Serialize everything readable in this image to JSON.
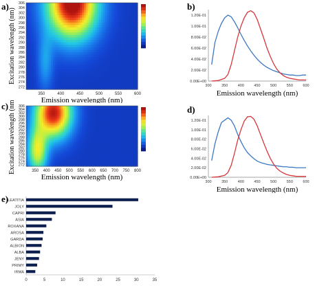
{
  "panel_labels": {
    "a": "a)",
    "b": "b)",
    "c": "c)",
    "d": "d)",
    "e": "e)"
  },
  "colors": {
    "blue_series": "#3b78c0",
    "red_series": "#d9363b",
    "bar": "#0d1f4e",
    "axis": "#888888"
  },
  "chart_data": [
    {
      "panel": "a",
      "type": "heatmap",
      "xlabel": "Emission wavelength (nm)",
      "ylabel": "Excitation wavelength (nm)",
      "x_ticks": [
        "350",
        "400",
        "450",
        "500",
        "550",
        "600"
      ],
      "y_ticks": [
        "272",
        "274",
        "276",
        "278",
        "280",
        "282",
        "284",
        "286",
        "288",
        "290",
        "292",
        "294",
        "296",
        "298",
        "300",
        "302",
        "304",
        "306"
      ],
      "xlim": [
        310,
        600
      ],
      "ylim": [
        271,
        306
      ],
      "colormap": [
        "#0a1f8a",
        "#1446d6",
        "#1b86ef",
        "#22c7e6",
        "#4ee39c",
        "#aef04a",
        "#f4ee2a",
        "#f9a820",
        "#ef3b1a",
        "#b0140f"
      ],
      "legend": "color scale, top-right",
      "peaks": [
        {
          "x": 430,
          "y": 306,
          "level": 1.0,
          "sx": 45,
          "sy": 10
        },
        {
          "x": 360,
          "y": 282,
          "level": 0.18,
          "sx": 14,
          "sy": 8
        }
      ]
    },
    {
      "panel": "b",
      "type": "line",
      "xlabel": "Emission wavelength (nm)",
      "ylabel": "",
      "x_ticks": [
        "300",
        "350",
        "400",
        "450",
        "500",
        "550",
        "600"
      ],
      "y_ticks": [
        "0.00E+00",
        "2.00E-02",
        "4.00E-02",
        "6.00E-02",
        "8.00E-02",
        "1.00E-01",
        "1.20E-01"
      ],
      "xlim": [
        300,
        600
      ],
      "ylim": [
        0,
        0.13
      ],
      "series": [
        {
          "x": [
            310,
            320,
            330,
            340,
            350,
            360,
            370,
            380,
            390,
            400,
            410,
            420,
            430,
            440,
            450,
            460,
            470,
            480,
            490,
            500,
            510,
            520,
            530,
            540,
            550,
            560,
            570,
            580,
            590,
            600
          ],
          "y": [
            0.03,
            0.07,
            0.09,
            0.105,
            0.115,
            0.12,
            0.117,
            0.108,
            0.097,
            0.085,
            0.074,
            0.064,
            0.055,
            0.047,
            0.04,
            0.034,
            0.029,
            0.025,
            0.022,
            0.019,
            0.017,
            0.015,
            0.013,
            0.012,
            0.011,
            0.011,
            0.01,
            0.01,
            0.011,
            0.011
          ]
        },
        {
          "x": [
            310,
            330,
            350,
            360,
            370,
            380,
            390,
            400,
            410,
            420,
            430,
            440,
            450,
            460,
            470,
            480,
            490,
            500,
            510,
            520,
            530,
            540,
            550,
            560,
            570,
            580,
            590,
            600
          ],
          "y": [
            0.0,
            0.001,
            0.005,
            0.012,
            0.03,
            0.055,
            0.08,
            0.1,
            0.115,
            0.125,
            0.128,
            0.124,
            0.112,
            0.095,
            0.078,
            0.06,
            0.045,
            0.032,
            0.022,
            0.015,
            0.01,
            0.007,
            0.005,
            0.004,
            0.003,
            0.002,
            0.002,
            0.002
          ]
        }
      ]
    },
    {
      "panel": "c",
      "type": "heatmap",
      "xlabel": "Emission wavelength (nm)",
      "ylabel": "Excitation wavelength (nm)",
      "x_ticks": [
        "350",
        "400",
        "450",
        "500",
        "550",
        "600",
        "650",
        "700",
        "750",
        "800"
      ],
      "y_ticks": [
        "272",
        "274",
        "276",
        "278",
        "280",
        "282",
        "284",
        "286",
        "288",
        "290",
        "292",
        "294",
        "296",
        "298",
        "300",
        "302",
        "304",
        "306"
      ],
      "xlim": [
        310,
        800
      ],
      "ylim": [
        271,
        306
      ],
      "colormap": [
        "#0a1f8a",
        "#1446d6",
        "#1b86ef",
        "#22c7e6",
        "#4ee39c",
        "#aef04a",
        "#f4ee2a",
        "#f9a820",
        "#ef3b1a",
        "#b0140f"
      ],
      "legend": "color scale, top-right",
      "peaks": [
        {
          "x": 430,
          "y": 302,
          "level": 0.9,
          "sx": 55,
          "sy": 10
        },
        {
          "x": 360,
          "y": 280,
          "level": 0.55,
          "sx": 30,
          "sy": 9
        }
      ]
    },
    {
      "panel": "d",
      "type": "line",
      "xlabel": "Emission wavelength (nm)",
      "ylabel": "",
      "x_ticks": [
        "300",
        "350",
        "400",
        "450",
        "500",
        "550",
        "600"
      ],
      "y_ticks": [
        "0.00E+00",
        "2.00E-02",
        "4.00E-02",
        "6.00E-02",
        "8.00E-02",
        "1.00E-01",
        "1.20E-01"
      ],
      "xlim": [
        300,
        600
      ],
      "ylim": [
        0,
        0.13
      ],
      "series": [
        {
          "x": [
            310,
            320,
            330,
            340,
            350,
            360,
            370,
            380,
            390,
            400,
            410,
            420,
            430,
            440,
            450,
            460,
            470,
            480,
            490,
            500,
            510,
            520,
            530,
            540,
            550,
            560,
            570,
            580,
            590,
            600
          ],
          "y": [
            0.035,
            0.07,
            0.095,
            0.115,
            0.12,
            0.125,
            0.12,
            0.108,
            0.09,
            0.075,
            0.062,
            0.052,
            0.045,
            0.039,
            0.034,
            0.031,
            0.029,
            0.027,
            0.026,
            0.025,
            0.024,
            0.023,
            0.022,
            0.022,
            0.021,
            0.021,
            0.02,
            0.02,
            0.02,
            0.02
          ]
        },
        {
          "x": [
            310,
            330,
            350,
            360,
            370,
            380,
            390,
            400,
            410,
            420,
            430,
            440,
            450,
            460,
            470,
            480,
            490,
            500,
            510,
            520,
            530,
            540,
            550,
            560,
            570,
            580,
            590,
            600
          ],
          "y": [
            0.0,
            0.001,
            0.004,
            0.01,
            0.025,
            0.05,
            0.078,
            0.1,
            0.118,
            0.127,
            0.128,
            0.122,
            0.108,
            0.09,
            0.072,
            0.055,
            0.04,
            0.028,
            0.019,
            0.013,
            0.009,
            0.006,
            0.004,
            0.003,
            0.002,
            0.002,
            0.002,
            0.002
          ]
        }
      ]
    },
    {
      "panel": "e",
      "type": "bar",
      "orientation": "horizontal",
      "categories": [
        "LEATITIA",
        "JOLY",
        "CAPRI",
        "ASIA",
        "ROXANA",
        "AROSA",
        "GARDA",
        "ALBION",
        "ALBA",
        "JENY",
        "PRIMY",
        "IRMA"
      ],
      "values": [
        30.5,
        23.5,
        8,
        7,
        5.5,
        4.7,
        4.5,
        4.2,
        3.8,
        3.5,
        3,
        2.5
      ],
      "x_ticks": [
        "0",
        "5",
        "10",
        "15",
        "20",
        "25",
        "30",
        "35"
      ],
      "xlim": [
        0,
        35
      ]
    }
  ]
}
